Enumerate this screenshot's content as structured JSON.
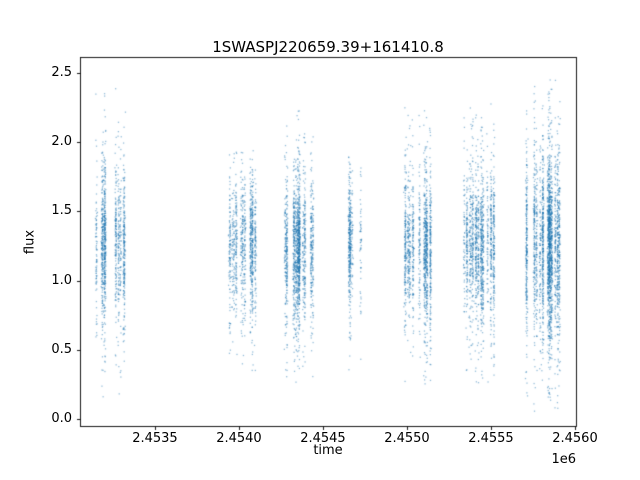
{
  "chart_data": {
    "type": "scatter",
    "title": "1SWASPJ220659.39+161410.8",
    "xlabel": "time",
    "ylabel": "flux",
    "x_offset_label": "1e6",
    "xlim": [
      2453054,
      2456006
    ],
    "ylim": [
      -0.06,
      2.61
    ],
    "xticks": [
      2453500,
      2454000,
      2454500,
      2455000,
      2455500,
      2456000
    ],
    "xtick_labels": [
      "2.4535",
      "2.4540",
      "2.4545",
      "2.4550",
      "2.4555",
      "2.4560"
    ],
    "yticks": [
      0.0,
      0.5,
      1.0,
      1.5,
      2.0,
      2.5
    ],
    "ytick_labels": [
      "0.0",
      "0.5",
      "1.0",
      "1.5",
      "2.0",
      "2.5"
    ],
    "grid": false,
    "legend": null,
    "marker_color": "#1f77b4",
    "marker_alpha": 0.5,
    "point_count_approx": 10800,
    "flux_dense_band": [
      0.9,
      1.6
    ],
    "clusters": [
      {
        "t_center": 2453248,
        "t_halfwidth": 105,
        "n": 1200,
        "flux_min": 0.15,
        "flux_max": 2.4,
        "core": [
          0.85,
          1.65
        ]
      },
      {
        "t_center": 2454036,
        "t_halfwidth": 100,
        "n": 1050,
        "flux_min": 0.3,
        "flux_max": 1.95,
        "core": [
          0.9,
          1.6
        ]
      },
      {
        "t_center": 2454378,
        "t_halfwidth": 112,
        "n": 1650,
        "flux_min": 0.25,
        "flux_max": 2.25,
        "core": [
          0.85,
          1.6
        ]
      },
      {
        "t_center": 2454682,
        "t_halfwidth": 50,
        "n": 430,
        "flux_min": 0.35,
        "flux_max": 1.9,
        "core": [
          0.95,
          1.6
        ]
      },
      {
        "t_center": 2455053,
        "t_halfwidth": 95,
        "n": 1350,
        "flux_min": 0.25,
        "flux_max": 2.25,
        "core": [
          0.85,
          1.6
        ]
      },
      {
        "t_center": 2455420,
        "t_halfwidth": 112,
        "n": 1550,
        "flux_min": 0.25,
        "flux_max": 2.35,
        "core": [
          0.85,
          1.65
        ]
      },
      {
        "t_center": 2455798,
        "t_halfwidth": 122,
        "n": 2600,
        "flux_min": 0.02,
        "flux_max": 2.5,
        "core": [
          0.75,
          1.75
        ]
      }
    ]
  }
}
